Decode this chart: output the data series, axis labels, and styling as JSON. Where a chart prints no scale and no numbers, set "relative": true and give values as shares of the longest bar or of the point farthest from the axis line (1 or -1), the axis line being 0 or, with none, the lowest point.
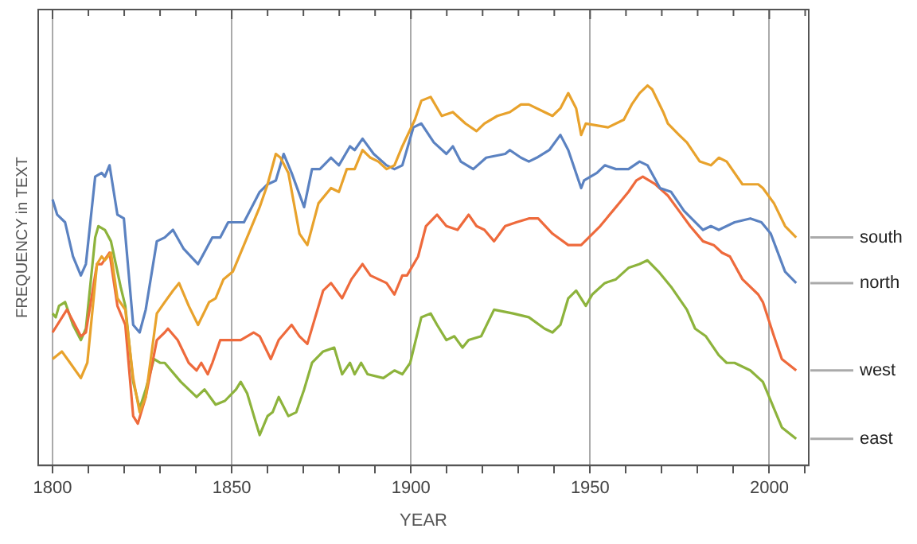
{
  "chart_data": {
    "type": "line",
    "xlabel": "YEAR",
    "ylabel": "FREQUENCY in TEXT",
    "relative": true,
    "grid": "x",
    "legend": false,
    "marker": "none",
    "line_style": "solid",
    "xlim": [
      1796,
      2011
    ],
    "xticks": [
      1800,
      {
        "value": 1810,
        "label": null
      },
      {
        "value": 1820,
        "label": null
      },
      {
        "value": 1830,
        "label": null
      },
      {
        "value": 1840,
        "label": null
      },
      1850,
      {
        "value": 1860,
        "label": null
      },
      {
        "value": 1870,
        "label": null
      },
      {
        "value": 1880,
        "label": null
      },
      {
        "value": 1890,
        "label": null
      },
      1900,
      {
        "value": 1910,
        "label": null
      },
      {
        "value": 1920,
        "label": null
      },
      {
        "value": 1930,
        "label": null
      },
      {
        "value": 1940,
        "label": null
      },
      1950,
      {
        "value": 1960,
        "label": null
      },
      {
        "value": 1970,
        "label": null
      },
      {
        "value": 1980,
        "label": null
      },
      {
        "value": 1990,
        "label": null
      },
      2000,
      {
        "value": 2010,
        "label": null
      }
    ],
    "series": [
      {
        "name": "south",
        "color": "#e8a22c",
        "x": [
          1800,
          1802.6,
          1804.9,
          1807.9,
          1809.7,
          1812.4,
          1813.7,
          1814.6,
          1816.3,
          1818.1,
          1820.3,
          1822.5,
          1824.3,
          1826.0,
          1829.1,
          1831.3,
          1833.6,
          1835.3,
          1838.0,
          1840.6,
          1843.7,
          1845.5,
          1847.7,
          1850.3,
          1853.4,
          1857.8,
          1860.0,
          1862.3,
          1863.6,
          1865.8,
          1868.9,
          1871.1,
          1874.2,
          1877.7,
          1879.9,
          1882.1,
          1884.3,
          1886.5,
          1888.7,
          1890.9,
          1893.2,
          1895.4,
          1897.6,
          1901.1,
          1902.9,
          1905.5,
          1908.6,
          1911.7,
          1915.2,
          1918.3,
          1920.5,
          1924.1,
          1927.6,
          1930.7,
          1932.9,
          1937.3,
          1939.5,
          1941.7,
          1943.9,
          1946.1,
          1947.5,
          1948.8,
          1955.0,
          1959.4,
          1961.6,
          1963.8,
          1966.0,
          1967.3,
          1970.4,
          1971.7,
          1974.8,
          1977.0,
          1980.6,
          1983.7,
          1985.9,
          1988.1,
          1992.5,
          1996.9,
          1998.2,
          2001.3,
          2004.4,
          2007.5
        ],
        "values": [
          0.28,
          0.3,
          0.27,
          0.23,
          0.27,
          0.53,
          0.55,
          0.54,
          0.56,
          0.44,
          0.41,
          0.23,
          0.14,
          0.18,
          0.4,
          0.43,
          0.46,
          0.48,
          0.42,
          0.37,
          0.43,
          0.44,
          0.49,
          0.51,
          0.58,
          0.68,
          0.74,
          0.82,
          0.81,
          0.77,
          0.61,
          0.58,
          0.69,
          0.73,
          0.72,
          0.78,
          0.78,
          0.83,
          0.81,
          0.8,
          0.78,
          0.79,
          0.84,
          0.91,
          0.96,
          0.97,
          0.92,
          0.93,
          0.9,
          0.88,
          0.9,
          0.92,
          0.93,
          0.95,
          0.95,
          0.93,
          0.92,
          0.94,
          0.98,
          0.94,
          0.87,
          0.9,
          0.89,
          0.91,
          0.95,
          0.98,
          1.0,
          0.99,
          0.93,
          0.9,
          0.87,
          0.85,
          0.8,
          0.79,
          0.81,
          0.8,
          0.74,
          0.74,
          0.73,
          0.69,
          0.63,
          0.6
        ]
      },
      {
        "name": "north",
        "color": "#5b82c1",
        "x": [
          1800,
          1801.3,
          1803.5,
          1805.7,
          1807.9,
          1809.3,
          1811.9,
          1813.7,
          1814.6,
          1815.9,
          1818.1,
          1819.9,
          1822.5,
          1824.3,
          1826.0,
          1829.1,
          1831.3,
          1833.6,
          1836.6,
          1840.6,
          1844.6,
          1846.8,
          1849.0,
          1853.4,
          1857.8,
          1860.0,
          1862.3,
          1864.5,
          1866.7,
          1870.2,
          1872.4,
          1874.6,
          1877.7,
          1879.9,
          1883.0,
          1884.3,
          1886.5,
          1889.6,
          1893.2,
          1895.4,
          1897.6,
          1900.7,
          1902.9,
          1906.4,
          1909.9,
          1911.7,
          1913.9,
          1917.4,
          1921.0,
          1926.3,
          1927.6,
          1930.7,
          1932.9,
          1935.1,
          1938.6,
          1941.7,
          1943.9,
          1947.5,
          1948.3,
          1951.9,
          1954.1,
          1957.2,
          1960.7,
          1963.8,
          1966.0,
          1969.5,
          1972.6,
          1976.2,
          1981.5,
          1983.7,
          1985.9,
          1990.3,
          1994.7,
          1997.8,
          2000.4,
          2004.4,
          2007.5
        ],
        "values": [
          0.7,
          0.66,
          0.64,
          0.55,
          0.5,
          0.53,
          0.76,
          0.77,
          0.76,
          0.79,
          0.66,
          0.65,
          0.37,
          0.35,
          0.41,
          0.59,
          0.6,
          0.62,
          0.57,
          0.53,
          0.6,
          0.6,
          0.64,
          0.64,
          0.72,
          0.74,
          0.75,
          0.82,
          0.77,
          0.68,
          0.78,
          0.78,
          0.81,
          0.79,
          0.84,
          0.83,
          0.86,
          0.82,
          0.79,
          0.78,
          0.79,
          0.89,
          0.9,
          0.85,
          0.82,
          0.84,
          0.8,
          0.78,
          0.81,
          0.82,
          0.83,
          0.81,
          0.8,
          0.81,
          0.83,
          0.87,
          0.83,
          0.73,
          0.75,
          0.77,
          0.79,
          0.78,
          0.78,
          0.8,
          0.79,
          0.73,
          0.72,
          0.67,
          0.62,
          0.63,
          0.62,
          0.64,
          0.65,
          0.64,
          0.61,
          0.51,
          0.48
        ]
      },
      {
        "name": "west",
        "color": "#ee6a3c",
        "x": [
          1800,
          1804.0,
          1805.7,
          1807.9,
          1809.3,
          1812.4,
          1813.7,
          1815.9,
          1818.1,
          1820.3,
          1822.5,
          1823.8,
          1826.0,
          1829.1,
          1831.3,
          1832.2,
          1834.9,
          1838.0,
          1840.2,
          1841.5,
          1843.3,
          1844.6,
          1846.8,
          1849.0,
          1852.5,
          1856.1,
          1857.8,
          1860.9,
          1863.1,
          1866.7,
          1868.9,
          1871.1,
          1873.3,
          1875.5,
          1877.7,
          1880.8,
          1883.4,
          1886.5,
          1888.7,
          1893.2,
          1895.4,
          1897.6,
          1898.9,
          1902.0,
          1904.2,
          1907.3,
          1909.9,
          1913.0,
          1916.1,
          1918.3,
          1920.5,
          1923.2,
          1926.3,
          1929.4,
          1932.9,
          1935.5,
          1939.5,
          1943.9,
          1946.1,
          1947.5,
          1952.8,
          1957.2,
          1960.7,
          1962.9,
          1964.7,
          1968.2,
          1971.7,
          1974.8,
          1977.9,
          1981.5,
          1984.5,
          1986.8,
          1989.0,
          1992.5,
          1996.9,
          1998.2,
          2001.3,
          2003.5,
          2007.5
        ],
        "values": [
          0.35,
          0.41,
          0.38,
          0.34,
          0.35,
          0.53,
          0.53,
          0.56,
          0.42,
          0.37,
          0.13,
          0.11,
          0.18,
          0.33,
          0.35,
          0.36,
          0.33,
          0.27,
          0.25,
          0.27,
          0.24,
          0.27,
          0.33,
          0.33,
          0.33,
          0.35,
          0.34,
          0.28,
          0.33,
          0.37,
          0.34,
          0.32,
          0.39,
          0.46,
          0.48,
          0.44,
          0.49,
          0.53,
          0.5,
          0.48,
          0.45,
          0.5,
          0.5,
          0.55,
          0.63,
          0.66,
          0.63,
          0.62,
          0.66,
          0.63,
          0.62,
          0.59,
          0.63,
          0.64,
          0.65,
          0.65,
          0.61,
          0.58,
          0.58,
          0.58,
          0.63,
          0.68,
          0.72,
          0.75,
          0.76,
          0.74,
          0.71,
          0.67,
          0.63,
          0.59,
          0.58,
          0.56,
          0.55,
          0.49,
          0.45,
          0.43,
          0.34,
          0.28,
          0.25
        ]
      },
      {
        "name": "east",
        "color": "#8db33c",
        "x": [
          1800,
          1800.9,
          1801.8,
          1803.5,
          1805.7,
          1807.9,
          1809.3,
          1811.9,
          1812.8,
          1814.6,
          1816.3,
          1819.0,
          1820.3,
          1822.5,
          1824.3,
          1826.0,
          1828.3,
          1830.0,
          1831.3,
          1835.8,
          1840.2,
          1842.4,
          1845.5,
          1848.1,
          1851.2,
          1852.5,
          1854.3,
          1856.5,
          1857.8,
          1860.0,
          1861.4,
          1863.1,
          1865.8,
          1868.0,
          1870.2,
          1872.4,
          1875.5,
          1878.6,
          1880.8,
          1883.0,
          1884.3,
          1886.1,
          1887.9,
          1892.3,
          1895.4,
          1897.6,
          1899.8,
          1902.9,
          1905.5,
          1907.3,
          1909.9,
          1912.1,
          1914.4,
          1916.1,
          1919.6,
          1923.2,
          1928.5,
          1932.9,
          1937.3,
          1939.5,
          1941.7,
          1943.9,
          1946.1,
          1948.8,
          1950.6,
          1954.1,
          1957.2,
          1960.7,
          1963.8,
          1966.0,
          1969.1,
          1972.6,
          1977.0,
          1979.3,
          1982.3,
          1985.9,
          1988.1,
          1990.3,
          1992.5,
          1994.7,
          1998.2,
          2001.3,
          2003.5,
          2007.5
        ],
        "values": [
          0.4,
          0.39,
          0.42,
          0.43,
          0.37,
          0.33,
          0.36,
          0.6,
          0.63,
          0.62,
          0.59,
          0.47,
          0.42,
          0.22,
          0.15,
          0.2,
          0.28,
          0.27,
          0.27,
          0.22,
          0.18,
          0.2,
          0.16,
          0.17,
          0.2,
          0.22,
          0.19,
          0.12,
          0.08,
          0.13,
          0.14,
          0.18,
          0.13,
          0.14,
          0.2,
          0.27,
          0.3,
          0.31,
          0.24,
          0.27,
          0.24,
          0.27,
          0.24,
          0.23,
          0.25,
          0.24,
          0.27,
          0.39,
          0.4,
          0.37,
          0.33,
          0.34,
          0.31,
          0.33,
          0.34,
          0.41,
          0.4,
          0.39,
          0.36,
          0.35,
          0.37,
          0.44,
          0.46,
          0.42,
          0.45,
          0.48,
          0.49,
          0.52,
          0.53,
          0.54,
          0.51,
          0.47,
          0.41,
          0.36,
          0.34,
          0.29,
          0.27,
          0.27,
          0.26,
          0.25,
          0.22,
          0.15,
          0.1,
          0.07
        ]
      }
    ]
  }
}
